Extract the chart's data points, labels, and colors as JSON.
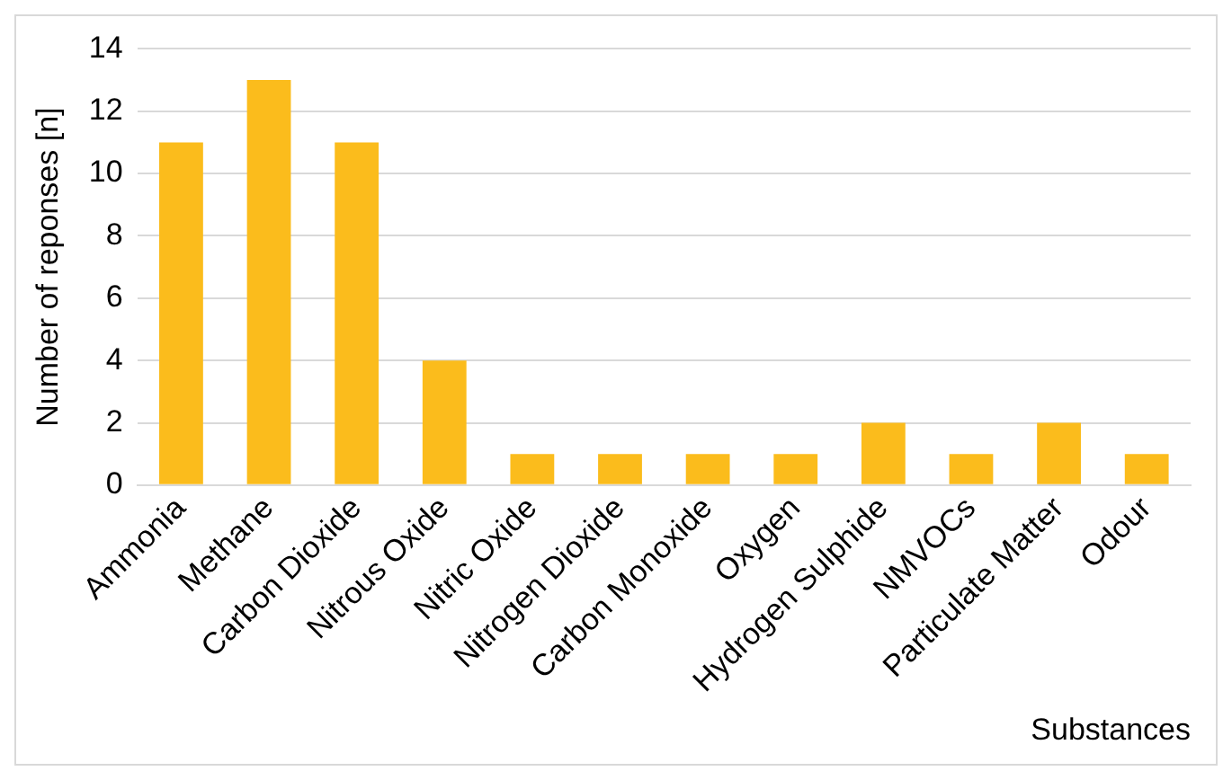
{
  "chart_data": {
    "type": "bar",
    "xlabel": "Substances",
    "ylabel": "Number of reponses [n]",
    "categories": [
      "Ammonia",
      "Methane",
      "Carbon Dioxide",
      "Nitrous Oxide",
      "Nitric Oxide",
      "Nitrogen Dioxide",
      "Carbon Monoxide",
      "Oxygen",
      "Hydrogen Sulphide",
      "NMVOCs",
      "Particulate Matter",
      "Odour"
    ],
    "values": [
      11,
      13,
      11,
      4,
      1,
      1,
      1,
      1,
      2,
      1,
      2,
      1
    ],
    "color": "#fbbc1c",
    "ylim": [
      0,
      14
    ],
    "yticks": [
      0,
      2,
      4,
      6,
      8,
      10,
      12,
      14
    ],
    "grid": "y"
  }
}
